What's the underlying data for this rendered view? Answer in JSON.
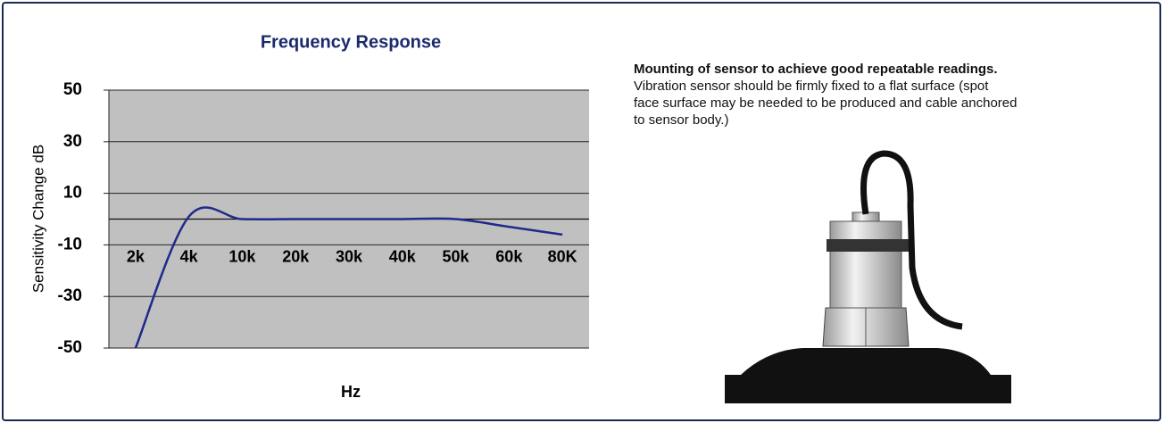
{
  "chart_data": {
    "type": "line",
    "title": "Frequency Response",
    "x_label": "Hz",
    "y_label": "Sensitivity Change dB",
    "categories": [
      "2k",
      "4k",
      "10k",
      "20k",
      "30k",
      "40k",
      "50k",
      "60k",
      "80K"
    ],
    "values": [
      -50,
      1,
      0,
      0,
      0,
      0,
      0,
      -3,
      -6
    ],
    "color": "#1f2a8a",
    "ylim": [
      -50,
      50
    ],
    "yticks": [
      -50,
      -30,
      -10,
      10,
      30,
      50
    ],
    "grid": true
  },
  "note": {
    "heading": "Mounting of sensor to achieve good repeatable readings.",
    "lines": [
      "Vibration sensor should be firmly fixed to a flat surface (spot",
      "face surface may be needed to be produced and cable anchored",
      "to sensor body.)"
    ]
  }
}
